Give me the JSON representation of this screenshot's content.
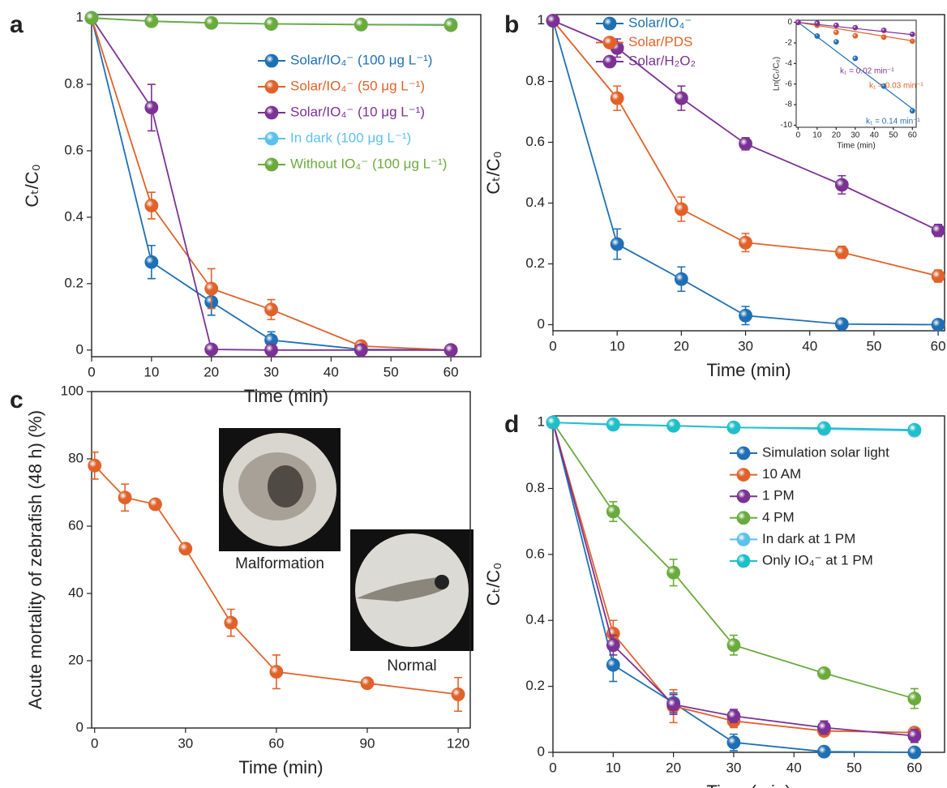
{
  "chart_data": [
    {
      "type": "line",
      "label": "a",
      "xlabel": "Time (min)",
      "ylabel": "Cₜ/C₀",
      "x": [
        0,
        10,
        20,
        30,
        45,
        60
      ],
      "xlim": [
        0,
        65
      ],
      "xticks": [
        0,
        10,
        20,
        30,
        40,
        50,
        60
      ],
      "ylim": [
        -0.02,
        1.01
      ],
      "yticks": [
        0,
        0.2,
        0.4,
        0.6,
        0.8,
        1
      ],
      "series": [
        {
          "name": "Solar/IO₄⁻ (100 μg L⁻¹)",
          "color": "#1f6fb4",
          "values": [
            1,
            0.265,
            0.145,
            0.03,
            0.002,
            0
          ],
          "errors": [
            0,
            0.05,
            0.04,
            0.025,
            0,
            0
          ]
        },
        {
          "name": "Solar/IO₄⁻ (50 μg L⁻¹)",
          "color": "#e0622a",
          "values": [
            1,
            0.435,
            0.185,
            0.122,
            0.012,
            0
          ],
          "errors": [
            0,
            0.04,
            0.06,
            0.03,
            0,
            0
          ]
        },
        {
          "name": "Solar/IO₄⁻ (10 μg L⁻¹)",
          "color": "#7b3294",
          "values": [
            1,
            0.73,
            0.002,
            0,
            0,
            0
          ],
          "errors": [
            0,
            0.07,
            0,
            0,
            0,
            0
          ]
        },
        {
          "name": "In dark (100 μg L⁻¹)",
          "color": "#5bc0eb",
          "values": [
            1,
            0.99,
            0.985,
            0.982,
            0.98,
            0.98
          ],
          "errors": [
            0,
            0,
            0,
            0,
            0,
            0
          ]
        },
        {
          "name": "Without IO₄⁻ (100 μg L⁻¹)",
          "color": "#6aab3c",
          "values": [
            1,
            0.99,
            0.985,
            0.982,
            0.98,
            0.978
          ],
          "errors": [
            0,
            0,
            0,
            0,
            0,
            0
          ]
        }
      ]
    },
    {
      "type": "line",
      "label": "b",
      "xlabel": "Time (min)",
      "ylabel": "Cₜ/C₀",
      "x": [
        0,
        10,
        20,
        30,
        45,
        60
      ],
      "xlim": [
        0,
        61
      ],
      "xticks": [
        0,
        10,
        20,
        30,
        40,
        50,
        60
      ],
      "ylim": [
        -0.02,
        1.02
      ],
      "yticks": [
        0,
        0.2,
        0.4,
        0.6,
        0.8,
        1
      ],
      "series": [
        {
          "name": "Solar/IO₄⁻",
          "color": "#1f6fb4",
          "values": [
            1,
            0.265,
            0.15,
            0.03,
            0.002,
            0
          ],
          "errors": [
            0,
            0.05,
            0.04,
            0.03,
            0,
            0
          ]
        },
        {
          "name": "Solar/PDS",
          "color": "#e0622a",
          "values": [
            1,
            0.745,
            0.38,
            0.27,
            0.238,
            0.16
          ],
          "errors": [
            0,
            0.04,
            0.04,
            0.03,
            0.02,
            0.02
          ]
        },
        {
          "name": "Solar/H₂O₂",
          "color": "#7b3294",
          "values": [
            1,
            0.91,
            0.745,
            0.595,
            0.46,
            0.31
          ],
          "errors": [
            0,
            0.03,
            0.04,
            0.02,
            0.03,
            0.02
          ]
        }
      ],
      "inset": {
        "type": "line",
        "xlabel": "Time (min)",
        "ylabel": "Ln(Cₜ/C₀)",
        "x": [
          0,
          10,
          20,
          30,
          45,
          60
        ],
        "xlim": [
          -1,
          62
        ],
        "xticks": [
          0,
          10,
          20,
          30,
          40,
          50,
          60
        ],
        "ylim": [
          -10.2,
          0.2
        ],
        "yticks": [
          0,
          -2,
          -4,
          -6,
          -8,
          -10
        ],
        "series": [
          {
            "color": "#1f6fb4",
            "values": [
              0,
              -1.33,
              -1.9,
              -3.5,
              -6.2,
              -8.6
            ],
            "k": 0.14,
            "k_label": "k₁ = 0.14 min⁻¹"
          },
          {
            "color": "#e0622a",
            "values": [
              0,
              -0.29,
              -0.97,
              -1.31,
              -1.44,
              -1.83
            ],
            "k": 0.03,
            "k_label": "k₁ = 0.03 min⁻¹"
          },
          {
            "color": "#7b3294",
            "values": [
              0,
              -0.09,
              -0.29,
              -0.52,
              -0.78,
              -1.17
            ],
            "k": 0.02,
            "k_label": "k₁ = 0.02 min⁻¹"
          }
        ]
      }
    },
    {
      "type": "line",
      "label": "c",
      "xlabel": "Time (min)",
      "ylabel": "Acute mortality of zebrafish (48 h) (%)",
      "x": [
        0,
        10,
        20,
        30,
        45,
        60,
        90,
        120
      ],
      "xlim": [
        -1,
        124
      ],
      "xticks": [
        0,
        30,
        60,
        90,
        120
      ],
      "ylim": [
        0,
        100
      ],
      "yticks": [
        0,
        20,
        40,
        60,
        80,
        100
      ],
      "series": [
        {
          "color": "#e0622a",
          "values": [
            78,
            68.5,
            66.5,
            53.3,
            31.3,
            16.7,
            13.3,
            10
          ],
          "errors": [
            4,
            4,
            0,
            0,
            4,
            5,
            0,
            5
          ]
        }
      ],
      "annotations": [
        "Malformation",
        "Normal"
      ]
    },
    {
      "type": "line",
      "label": "d",
      "xlabel": "Time (min)",
      "ylabel": "Cₜ/C₀",
      "x": [
        0,
        10,
        20,
        30,
        45,
        60
      ],
      "xlim": [
        0,
        65
      ],
      "xticks": [
        0,
        10,
        20,
        30,
        40,
        50,
        60
      ],
      "ylim": [
        0,
        1.02
      ],
      "yticks": [
        0,
        0.2,
        0.4,
        0.6,
        0.8,
        1
      ],
      "series": [
        {
          "name": "Simulation solar light",
          "color": "#1f6fb4",
          "values": [
            1,
            0.265,
            0.15,
            0.03,
            0.002,
            0
          ],
          "errors": [
            0,
            0.05,
            0.03,
            0.025,
            0,
            0
          ]
        },
        {
          "name": "10 AM",
          "color": "#e0622a",
          "values": [
            1,
            0.36,
            0.14,
            0.095,
            0.065,
            0.06
          ],
          "errors": [
            0,
            0.04,
            0.05,
            0.02,
            0.01,
            0.01
          ]
        },
        {
          "name": "1 PM",
          "color": "#7b3294",
          "values": [
            1,
            0.325,
            0.145,
            0.11,
            0.075,
            0.05
          ],
          "errors": [
            0,
            0.03,
            0.03,
            0.02,
            0.02,
            0.02
          ]
        },
        {
          "name": "4 PM",
          "color": "#6aab3c",
          "values": [
            1,
            0.73,
            0.545,
            0.325,
            0.24,
            0.163
          ],
          "errors": [
            0,
            0.03,
            0.04,
            0.03,
            0.01,
            0.03
          ]
        },
        {
          "name": "In dark at 1 PM",
          "color": "#5bc0eb",
          "values": [
            1,
            0.995,
            0.99,
            0.985,
            0.98,
            0.975
          ],
          "errors": [
            0,
            0,
            0,
            0,
            0,
            0
          ]
        },
        {
          "name": "Only IO₄⁻ at 1 PM",
          "color": "#1fbfc8",
          "values": [
            1,
            0.993,
            0.99,
            0.985,
            0.983,
            0.978
          ],
          "errors": [
            0,
            0,
            0,
            0,
            0,
            0
          ]
        }
      ]
    }
  ]
}
